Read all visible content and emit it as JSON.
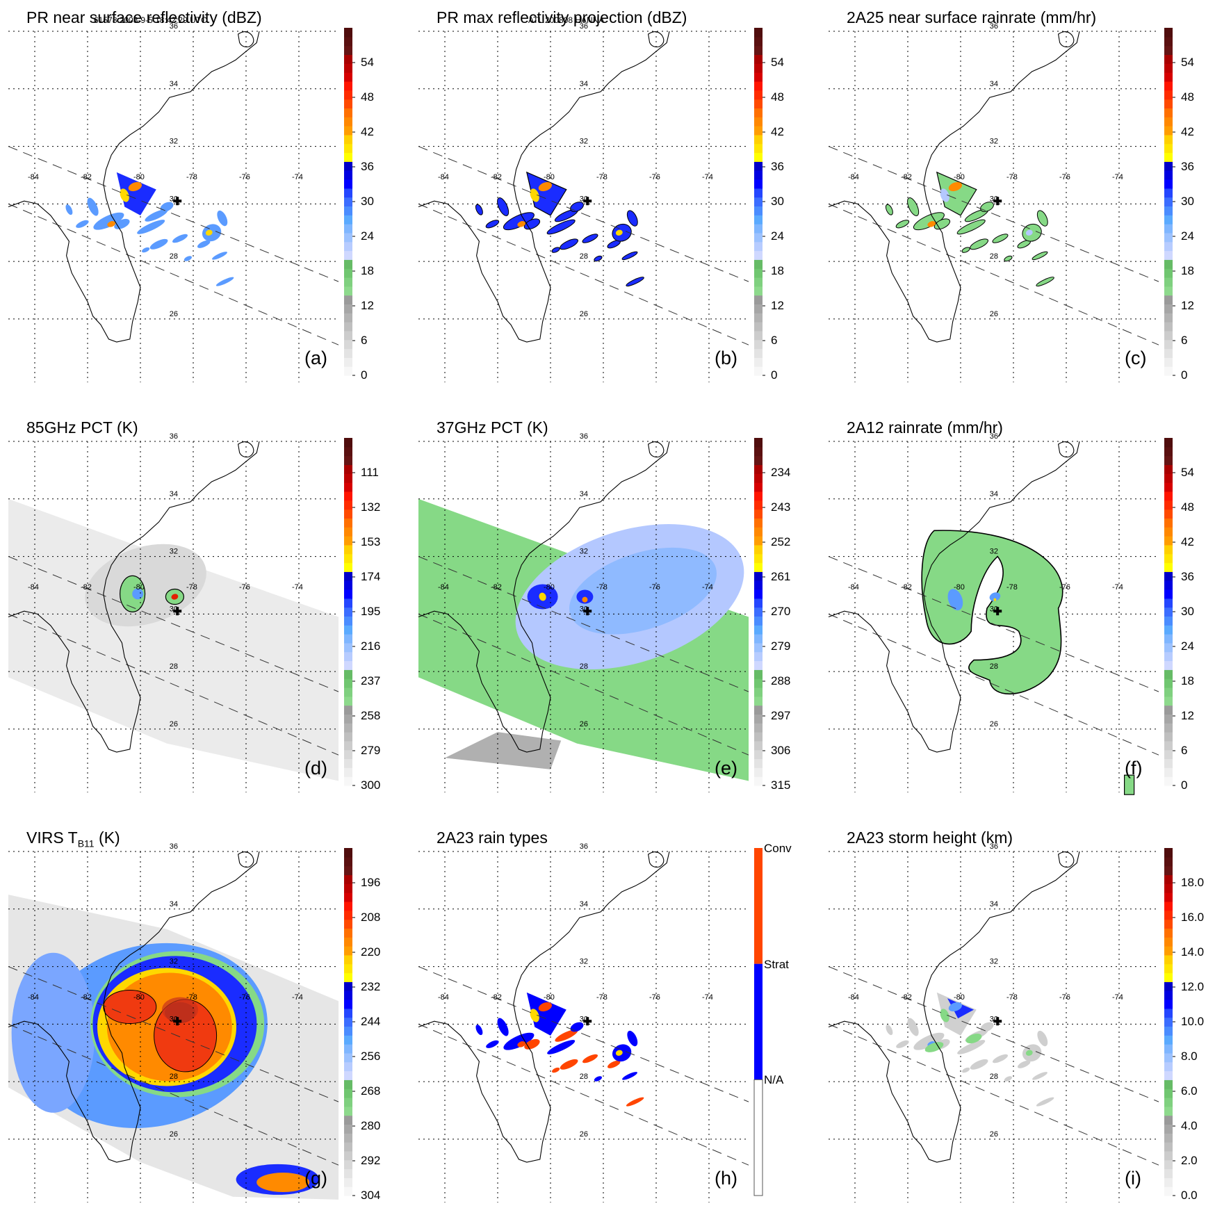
{
  "header": {
    "left": "61578 2008-9-5 18:42:29 UTC",
    "center": "ATL 200808 HANNA"
  },
  "colors": {
    "ramp": [
      "#f7f7f7",
      "#eeeeee",
      "#e3e3e3",
      "#d8d8d8",
      "#cccccc",
      "#bfbfbf",
      "#b3b3b3",
      "#a6a6a6",
      "#9a9a9a",
      "#8dd98c",
      "#7fd07f",
      "#70c670",
      "#66bb66",
      "#cfd8ff",
      "#b7ccff",
      "#9cc2ff",
      "#7fb6ff",
      "#5aaaff",
      "#4a8cff",
      "#3b6dff",
      "#2446ff",
      "#0000ff",
      "#0000e0",
      "#0000c8",
      "#ffff00",
      "#ffe600",
      "#ffd000",
      "#ff9d00",
      "#ff8800",
      "#ff7000",
      "#ff4a00",
      "#ff2c00",
      "#ff1400",
      "#d60000",
      "#bd0000",
      "#a80000",
      "#651414",
      "#5a1010",
      "#4f0d0d"
    ],
    "conv": "#ff4500",
    "strat": "#0000ff",
    "na": "#ffffff",
    "green": "#86d986",
    "lightblue": "#b4c8ff",
    "midblue": "#5b9bff",
    "blue": "#1a2cff",
    "yellow": "#ffd800",
    "orange": "#ff8a00",
    "red": "#e42000",
    "darkred": "#8c1a10",
    "gray": "#a0a0a0",
    "lightgray": "#e8e8e8"
  },
  "map": {
    "lon_ticks": [
      "-84",
      "-82",
      "-80",
      "-78",
      "-76",
      "-74"
    ],
    "lat_ticks": [
      "36",
      "34",
      "32",
      "30",
      "28",
      "26"
    ],
    "lon_values": [
      -84,
      -82,
      -80,
      -78,
      -76,
      -74
    ],
    "lat_values": [
      36,
      34,
      32,
      30,
      28,
      26
    ],
    "storm_center": {
      "lon": -78.6,
      "lat": 30.1
    }
  },
  "chart_data": [
    {
      "type": "heatmap",
      "id": "a",
      "title": "PR near surface reflectivity (dBZ)",
      "letter": "(a)",
      "colorbar": {
        "ticks": [
          "54",
          "48",
          "42",
          "36",
          "30",
          "24",
          "18",
          "12",
          "6",
          "0"
        ],
        "range": [
          0,
          60
        ],
        "units": "dBZ"
      },
      "field": "pr_swath",
      "swath": "pr"
    },
    {
      "type": "heatmap",
      "id": "b",
      "title": "PR max reflectivity projection (dBZ)",
      "letter": "(b)",
      "colorbar": {
        "ticks": [
          "54",
          "48",
          "42",
          "36",
          "30",
          "24",
          "18",
          "12",
          "6",
          "0"
        ],
        "range": [
          0,
          60
        ],
        "units": "dBZ"
      },
      "field": "pr_swath_contour",
      "swath": "pr"
    },
    {
      "type": "heatmap",
      "id": "c",
      "title": "2A25 near surface rainrate (mm/hr)",
      "letter": "(c)",
      "colorbar": {
        "ticks": [
          "54",
          "48",
          "42",
          "36",
          "30",
          "24",
          "18",
          "12",
          "6",
          "0"
        ],
        "range": [
          0,
          60
        ],
        "units": "mm/hr"
      },
      "field": "pr_swath_rain",
      "swath": "pr"
    },
    {
      "type": "heatmap",
      "id": "d",
      "title": "85GHz PCT (K)",
      "letter": "(d)",
      "colorbar": {
        "ticks": [
          "111",
          "132",
          "153",
          "174",
          "195",
          "216",
          "237",
          "258",
          "279",
          "300"
        ],
        "range": [
          90,
          300
        ],
        "units": "K"
      },
      "field": "tmi85",
      "swath": "tmi"
    },
    {
      "type": "heatmap",
      "id": "e",
      "title": "37GHz PCT (K)",
      "letter": "(e)",
      "colorbar": {
        "ticks": [
          "234",
          "243",
          "252",
          "261",
          "270",
          "279",
          "288",
          "297",
          "306",
          "315"
        ],
        "range": [
          225,
          315
        ],
        "units": "K"
      },
      "field": "tmi37",
      "swath": "tmi"
    },
    {
      "type": "heatmap",
      "id": "f",
      "title": "2A12 rainrate (mm/hr)",
      "letter": "(f)",
      "colorbar": {
        "ticks": [
          "54",
          "48",
          "42",
          "36",
          "30",
          "24",
          "18",
          "12",
          "6",
          "0"
        ],
        "range": [
          0,
          60
        ],
        "units": "mm/hr"
      },
      "field": "tmi_rain",
      "swath": "pr"
    },
    {
      "type": "heatmap",
      "id": "g",
      "title_main": "VIRS T",
      "title_sub": "B11",
      "title_tail": " (K)",
      "letter": "(g)",
      "colorbar": {
        "ticks": [
          "196",
          "208",
          "220",
          "232",
          "244",
          "256",
          "268",
          "280",
          "292",
          "304"
        ],
        "range": [
          184,
          304
        ],
        "units": "K"
      },
      "field": "virs",
      "swath": "virs"
    },
    {
      "type": "heatmap",
      "id": "h",
      "title": "2A23 rain types",
      "letter": "(h)",
      "colorbar": {
        "categories": [
          "Conv",
          "Strat",
          "N/A"
        ],
        "type": "categorical"
      },
      "field": "raintype",
      "swath": "pr"
    },
    {
      "type": "heatmap",
      "id": "i",
      "title": "2A23 storm height (km)",
      "letter": "(i)",
      "colorbar": {
        "ticks": [
          "18.0",
          "16.0",
          "14.0",
          "12.0",
          "10.0",
          "8.0",
          "6.0",
          "4.0",
          "2.0",
          "0.0"
        ],
        "range": [
          0,
          20
        ],
        "units": "km"
      },
      "field": "stormheight",
      "swath": "pr"
    }
  ]
}
